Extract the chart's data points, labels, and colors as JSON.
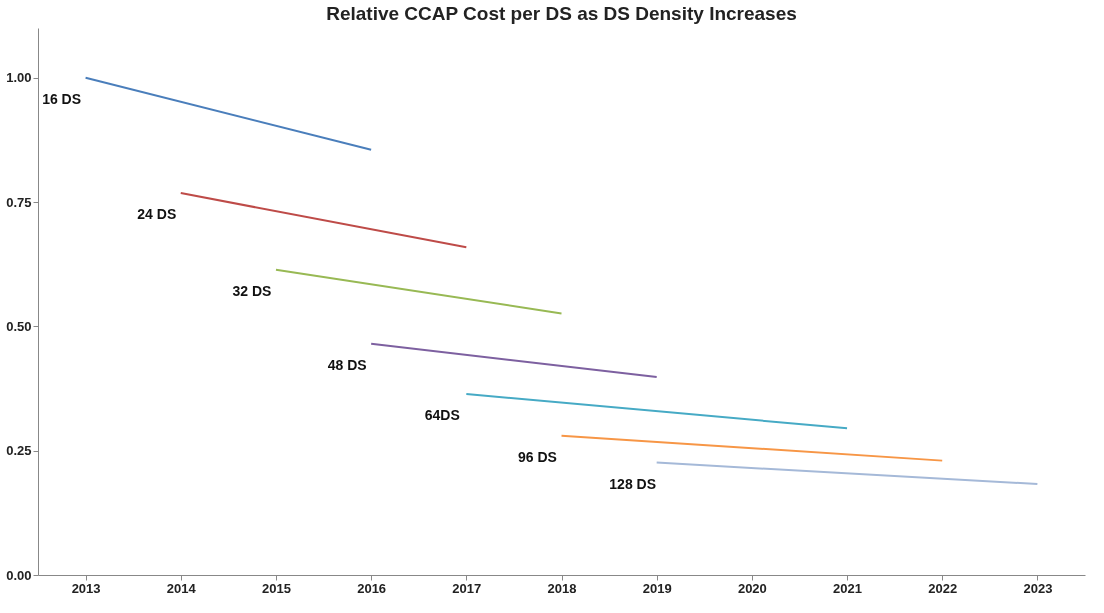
{
  "chart_data": {
    "type": "line",
    "title": "Relative CCAP  Cost per DS as DS Density Increases",
    "categories": [
      "2013",
      "2014",
      "2015",
      "2016",
      "2017",
      "2018",
      "2019",
      "2020",
      "2021",
      "2022",
      "2023"
    ],
    "ylim": [
      0,
      1.1
    ],
    "yticks": [
      {
        "value": 0,
        "label": "0.00"
      },
      {
        "value": 0.25,
        "label": "0.25"
      },
      {
        "value": 0.5,
        "label": "0.50"
      },
      {
        "value": 0.75,
        "label": "0.75"
      },
      {
        "value": 1,
        "label": "1.00"
      }
    ],
    "grid": false,
    "legend": false,
    "marker": "none",
    "line_style": "solid",
    "series": [
      {
        "name": "16 DS",
        "color": "#4a7ebb",
        "values": [
          1.0,
          null,
          null,
          0.855,
          null,
          null,
          null,
          null,
          null,
          null,
          null
        ]
      },
      {
        "name": "24 DS",
        "color": "#be4b48",
        "values": [
          null,
          0.768,
          null,
          null,
          0.659,
          null,
          null,
          null,
          null,
          null,
          null
        ]
      },
      {
        "name": "32 DS",
        "color": "#98b954",
        "values": [
          null,
          null,
          0.614,
          null,
          null,
          0.526,
          null,
          null,
          null,
          null,
          null
        ]
      },
      {
        "name": "48 DS",
        "color": "#7d60a0",
        "values": [
          null,
          null,
          null,
          0.465,
          null,
          null,
          0.398,
          null,
          null,
          null,
          null
        ]
      },
      {
        "name": "64DS",
        "color": "#46aac5",
        "values": [
          null,
          null,
          null,
          null,
          0.364,
          null,
          null,
          null,
          0.295,
          null,
          null
        ]
      },
      {
        "name": "96 DS",
        "color": "#f79646",
        "values": [
          null,
          null,
          null,
          null,
          null,
          0.28,
          null,
          null,
          null,
          0.23,
          null
        ]
      },
      {
        "name": "128 DS",
        "color": "#a5b9d8",
        "values": [
          null,
          null,
          null,
          null,
          null,
          null,
          0.226,
          null,
          null,
          null,
          0.183
        ]
      }
    ]
  }
}
